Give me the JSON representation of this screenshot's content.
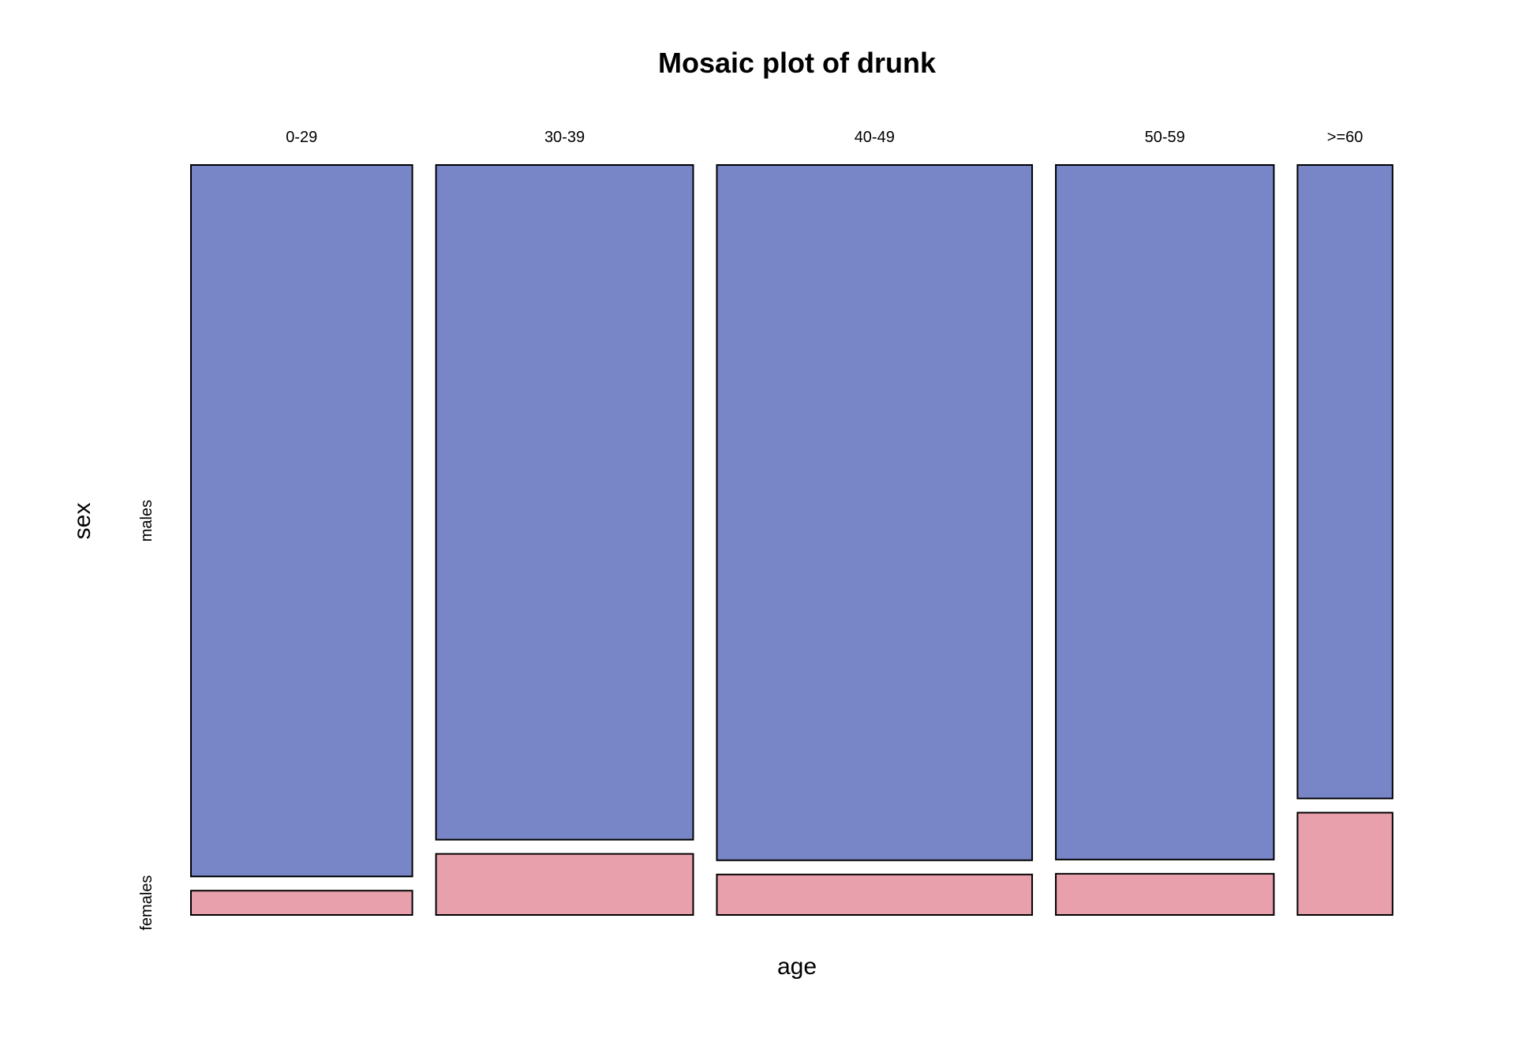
{
  "chart_data": {
    "type": "mosaic",
    "title": "Mosaic plot of drunk",
    "xlabel": "age",
    "ylabel": "sex",
    "x_variable": "age",
    "y_variable": "sex",
    "categories": [
      "0-29",
      "30-39",
      "40-49",
      "50-59",
      ">=60"
    ],
    "column_proportions": [
      0.198,
      0.23,
      0.282,
      0.195,
      0.085
    ],
    "series": [
      {
        "name": "males",
        "color": "#7886C8",
        "values": [
          0.967,
          0.917,
          0.945,
          0.944,
          0.861
        ]
      },
      {
        "name": "females",
        "color": "#E8A0AC",
        "values": [
          0.033,
          0.083,
          0.055,
          0.056,
          0.139
        ]
      }
    ],
    "grid": false,
    "legend": "none"
  }
}
